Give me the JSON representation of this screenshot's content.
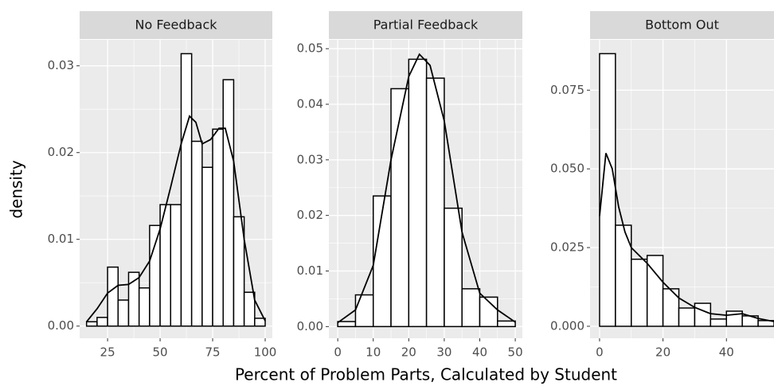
{
  "xlabel": "Percent of Problem Parts, Calculated by Student",
  "ylabel": "density",
  "chart_data": [
    {
      "type": "histogram",
      "title": "No Feedback",
      "bins": [
        15,
        20,
        25,
        30,
        35,
        40,
        45,
        50,
        55,
        60,
        65,
        70,
        75,
        80,
        85,
        90,
        95,
        100
      ],
      "values": [
        0.0005,
        0.001,
        0.0068,
        0.003,
        0.0062,
        0.0044,
        0.0116,
        0.014,
        0.014,
        0.0314,
        0.0213,
        0.0183,
        0.0227,
        0.0284,
        0.0126,
        0.0039,
        0.0009
      ],
      "density": {
        "x": [
          15,
          20,
          25,
          30,
          35,
          40,
          45,
          50,
          55,
          60,
          64,
          67,
          70,
          74,
          78,
          81,
          85,
          90,
          95,
          100
        ],
        "values": [
          0.0005,
          0.002,
          0.0038,
          0.0047,
          0.0048,
          0.0056,
          0.0075,
          0.0112,
          0.016,
          0.021,
          0.0242,
          0.0235,
          0.021,
          0.0215,
          0.0228,
          0.0228,
          0.019,
          0.01,
          0.003,
          0.0006
        ]
      },
      "fill": "#ffffff",
      "edgecolor": "#000000",
      "xlim": [
        11.7,
        103.4
      ],
      "ylim": [
        -0.0014,
        0.033
      ],
      "xticks": [
        25,
        50,
        75,
        100
      ],
      "yticks": [
        {
          "value": 0,
          "label": "0.00"
        },
        {
          "value": 0.01,
          "label": "0.01"
        },
        {
          "value": 0.02,
          "label": "0.02"
        },
        {
          "value": 0.03,
          "label": "0.03"
        }
      ],
      "grid": true
    },
    {
      "type": "histogram",
      "title": "Partial Feedback",
      "bins": [
        0,
        5,
        10,
        15,
        20,
        25,
        30,
        35,
        40,
        45,
        50
      ],
      "values": [
        0.0009,
        0.0057,
        0.0235,
        0.0428,
        0.0481,
        0.0447,
        0.0213,
        0.0068,
        0.0053,
        0.001
      ],
      "density": {
        "x": [
          0,
          5,
          10,
          15,
          20,
          23,
          26,
          30,
          35,
          40,
          45,
          50
        ],
        "values": [
          0.0007,
          0.003,
          0.011,
          0.03,
          0.045,
          0.049,
          0.047,
          0.037,
          0.017,
          0.006,
          0.003,
          0.0008
        ]
      },
      "fill": "#ffffff",
      "edgecolor": "#000000",
      "xlim": [
        -2.5,
        52
      ],
      "ylim": [
        -0.0021,
        0.0516
      ],
      "xticks": [
        0,
        10,
        20,
        30,
        40,
        50
      ],
      "yticks": [
        {
          "value": 0,
          "label": "0.00"
        },
        {
          "value": 0.01,
          "label": "0.01"
        },
        {
          "value": 0.02,
          "label": "0.02"
        },
        {
          "value": 0.03,
          "label": "0.03"
        },
        {
          "value": 0.04,
          "label": "0.04"
        },
        {
          "value": 0.05,
          "label": "0.05"
        }
      ],
      "grid": true
    },
    {
      "type": "histogram",
      "title": "Bottom Out",
      "bins": [
        0,
        5,
        10,
        15,
        20,
        25,
        30,
        35,
        40,
        45,
        50,
        55
      ],
      "values": [
        0.0866,
        0.0321,
        0.0213,
        0.0225,
        0.0119,
        0.0058,
        0.0073,
        0.0023,
        0.0048,
        0.0033,
        0.0018
      ],
      "density": {
        "x": [
          0,
          2,
          4,
          6,
          8,
          10,
          15,
          20,
          25,
          30,
          35,
          40,
          45,
          50,
          55
        ],
        "values": [
          0.035,
          0.055,
          0.05,
          0.038,
          0.03,
          0.025,
          0.02,
          0.014,
          0.009,
          0.006,
          0.004,
          0.0035,
          0.004,
          0.0025,
          0.0015
        ]
      },
      "fill": "#ffffff",
      "edgecolor": "#000000",
      "xlim": [
        -3,
        55
      ],
      "ylim": [
        -0.0038,
        0.091
      ],
      "xticks": [
        0,
        20,
        40
      ],
      "yticks": [
        {
          "value": 0,
          "label": "0.000"
        },
        {
          "value": 0.025,
          "label": "0.025"
        },
        {
          "value": 0.05,
          "label": "0.050"
        },
        {
          "value": 0.075,
          "label": "0.075"
        }
      ],
      "grid": true
    }
  ]
}
